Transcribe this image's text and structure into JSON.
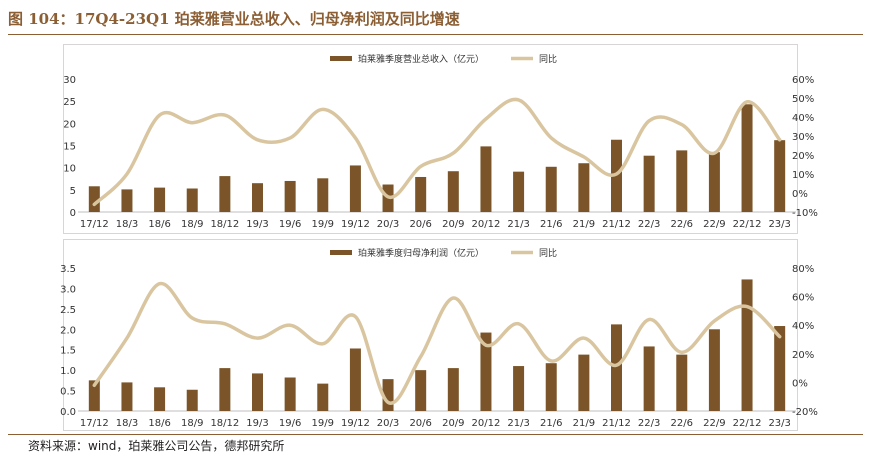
{
  "title": "图 104：17Q4-23Q1 珀莱雅营业总收入、归母净利润及同比增速",
  "source": "资料来源：wind，珀莱雅公司公告，德邦研究所",
  "colors": {
    "bar": "#7B5529",
    "line": "#D9C6A0",
    "accent": "#8B5E34"
  },
  "chart_data": [
    {
      "type": "bar",
      "categories": [
        "17/12",
        "18/3",
        "18/6",
        "18/9",
        "18/12",
        "19/3",
        "19/6",
        "19/9",
        "19/12",
        "20/3",
        "20/6",
        "20/9",
        "20/12",
        "21/3",
        "21/6",
        "21/9",
        "21/12",
        "22/3",
        "22/6",
        "22/9",
        "22/12",
        "23/3"
      ],
      "series": [
        {
          "name": "珀莱雅季度营业总收入（亿元）",
          "kind": "bar",
          "axis": "left",
          "values": [
            5.8,
            5.1,
            5.5,
            5.3,
            8.1,
            6.5,
            7.0,
            7.6,
            10.5,
            6.2,
            7.9,
            9.2,
            14.8,
            9.1,
            10.2,
            11.0,
            16.3,
            12.7,
            13.9,
            13.5,
            24.3,
            16.2
          ]
        },
        {
          "name": "同比",
          "kind": "line",
          "axis": "right",
          "values": [
            -6,
            10,
            41,
            37,
            41,
            28,
            29,
            44,
            29,
            -2,
            14,
            21,
            39,
            49,
            29,
            19,
            10,
            38,
            36,
            21,
            48,
            28
          ]
        }
      ],
      "ylim_left": [
        0,
        30
      ],
      "yticks_left": [
        "0",
        "5",
        "10",
        "15",
        "20",
        "25",
        "30"
      ],
      "ylim_right": [
        -10,
        60
      ],
      "yticks_right": [
        "-10%",
        "0%",
        "10%",
        "20%",
        "30%",
        "40%",
        "50%",
        "60%"
      ],
      "legend": "top"
    },
    {
      "type": "bar",
      "categories": [
        "17/12",
        "18/3",
        "18/6",
        "18/9",
        "18/12",
        "19/3",
        "19/6",
        "19/9",
        "19/12",
        "20/3",
        "20/6",
        "20/9",
        "20/12",
        "21/3",
        "21/6",
        "21/9",
        "21/12",
        "22/3",
        "22/6",
        "22/9",
        "22/12",
        "23/3"
      ],
      "series": [
        {
          "name": "珀莱雅季度归母净利润（亿元）",
          "kind": "bar",
          "axis": "left",
          "values": [
            0.75,
            0.7,
            0.58,
            0.52,
            1.05,
            0.92,
            0.82,
            0.67,
            1.53,
            0.78,
            1.0,
            1.05,
            1.92,
            1.1,
            1.17,
            1.38,
            2.12,
            1.58,
            1.38,
            2.0,
            3.22,
            2.08
          ]
        },
        {
          "name": "同比",
          "kind": "line",
          "axis": "right",
          "values": [
            -2,
            31,
            69,
            45,
            41,
            31,
            40,
            27,
            46,
            -14,
            18,
            59,
            26,
            41,
            15,
            31,
            12,
            44,
            21,
            43,
            53,
            32
          ]
        }
      ],
      "ylim_left": [
        0,
        3.5
      ],
      "yticks_left": [
        "0.0",
        "0.5",
        "1.0",
        "1.5",
        "2.0",
        "2.5",
        "3.0",
        "3.5"
      ],
      "ylim_right": [
        -20,
        80
      ],
      "yticks_right": [
        "-20%",
        "0%",
        "20%",
        "40%",
        "60%",
        "80%"
      ],
      "legend": "top"
    }
  ]
}
